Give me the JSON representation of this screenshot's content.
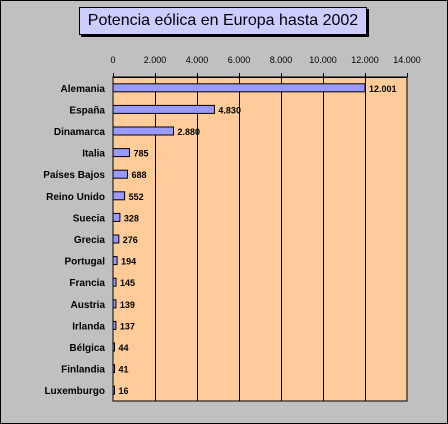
{
  "chart_data": {
    "type": "bar",
    "orientation": "horizontal",
    "title": "Potencia eólica en Europa hasta 2002",
    "categories": [
      "Alemania",
      "España",
      "Dinamarca",
      "Italia",
      "Países Bajos",
      "Reino Unido",
      "Suecia",
      "Grecia",
      "Portugal",
      "Francia",
      "Austria",
      "Irlanda",
      "Bélgica",
      "Finlandia",
      "Luxemburgo"
    ],
    "values": [
      12001,
      4830,
      2880,
      785,
      688,
      552,
      328,
      276,
      194,
      145,
      139,
      137,
      44,
      41,
      16
    ],
    "data_labels": [
      "12.001",
      "4.830",
      "2.880",
      "785",
      "688",
      "552",
      "328",
      "276",
      "194",
      "145",
      "139",
      "137",
      "44",
      "41",
      "16"
    ],
    "xlim": [
      0,
      14000
    ],
    "x_ticks": [
      0,
      2000,
      4000,
      6000,
      8000,
      10000,
      12000,
      14000
    ],
    "x_tick_labels": [
      "0",
      "2.000",
      "4.000",
      "6.000",
      "8.000",
      "10.000",
      "12.000",
      "14.000"
    ],
    "x_axis_position": "top",
    "grid": true,
    "legend": "none",
    "colors": {
      "plot_background": "#ffcc99",
      "bar_fill": "#9999ff",
      "bar_stroke": "#000000",
      "outer_background": "#c0c0c0",
      "title_background": "#ccccff"
    }
  }
}
